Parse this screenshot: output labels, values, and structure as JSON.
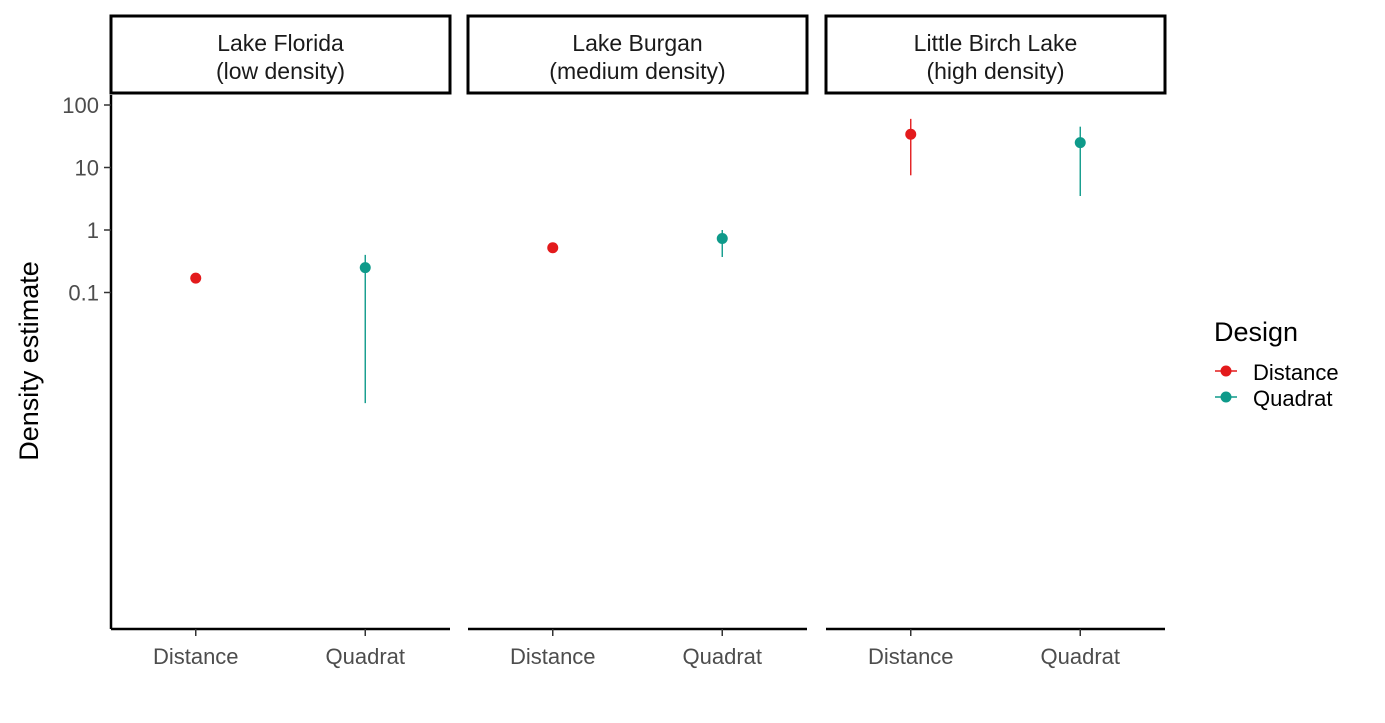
{
  "chart_data": {
    "type": "scatter",
    "subtype": "point-range, faceted",
    "ylabel": "Density estimate",
    "xlabel": "",
    "yscale": "log10",
    "ylim": [
      0.0014,
      140
    ],
    "yticks": [
      {
        "value": 0.1,
        "label": "0.1"
      },
      {
        "value": 1,
        "label": "1"
      },
      {
        "value": 10,
        "label": "10"
      },
      {
        "value": 100,
        "label": "100"
      }
    ],
    "categories": [
      "Distance",
      "Quadrat"
    ],
    "grid": false,
    "legend": {
      "title": "Design",
      "position": "right",
      "entries": [
        {
          "label": "Distance",
          "color": "#e31a1c"
        },
        {
          "label": "Quadrat",
          "color": "#0e9a8a"
        }
      ]
    },
    "facets": [
      {
        "title_line1": "Lake Florida",
        "title_line2": "(low density)",
        "points": [
          {
            "design": "Distance",
            "estimate": 0.17,
            "lower": 0.15,
            "upper": 0.18
          },
          {
            "design": "Quadrat",
            "estimate": 0.25,
            "lower": 0.0017,
            "upper": 0.4
          }
        ]
      },
      {
        "title_line1": "Lake Burgan",
        "title_line2": "(medium density)",
        "points": [
          {
            "design": "Distance",
            "estimate": 0.52,
            "lower": 0.46,
            "upper": 0.56
          },
          {
            "design": "Quadrat",
            "estimate": 0.73,
            "lower": 0.37,
            "upper": 1.0
          }
        ]
      },
      {
        "title_line1": "Little Birch Lake",
        "title_line2": "(high density)",
        "points": [
          {
            "design": "Distance",
            "estimate": 34,
            "lower": 7.5,
            "upper": 60
          },
          {
            "design": "Quadrat",
            "estimate": 25,
            "lower": 3.5,
            "upper": 45
          }
        ]
      }
    ]
  }
}
